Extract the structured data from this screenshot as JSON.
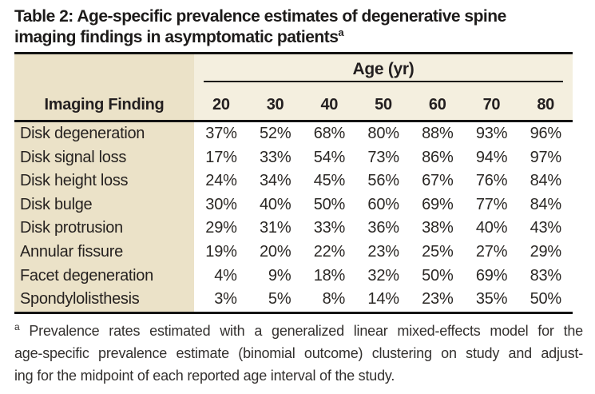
{
  "title": {
    "line1": "Table 2: Age-specific prevalence estimates of degenerative spine",
    "line2": "imaging findings in asymptomatic patients",
    "marker": "a"
  },
  "table": {
    "age_group_label": "Age (yr)",
    "label_col_header": "Imaging Finding",
    "age_headers": [
      "20",
      "30",
      "40",
      "50",
      "60",
      "70",
      "80"
    ],
    "rows": [
      {
        "label": "Disk degeneration",
        "values": [
          "37%",
          "52%",
          "68%",
          "80%",
          "88%",
          "93%",
          "96%"
        ]
      },
      {
        "label": "Disk signal loss",
        "values": [
          "17%",
          "33%",
          "54%",
          "73%",
          "86%",
          "94%",
          "97%"
        ]
      },
      {
        "label": "Disk height loss",
        "values": [
          "24%",
          "34%",
          "45%",
          "56%",
          "67%",
          "76%",
          "84%"
        ]
      },
      {
        "label": "Disk bulge",
        "values": [
          "30%",
          "40%",
          "50%",
          "60%",
          "69%",
          "77%",
          "84%"
        ]
      },
      {
        "label": "Disk protrusion",
        "values": [
          "29%",
          "31%",
          "33%",
          "36%",
          "38%",
          "40%",
          "43%"
        ]
      },
      {
        "label": "Annular fissure",
        "values": [
          "19%",
          "20%",
          "22%",
          "23%",
          "25%",
          "27%",
          "29%"
        ]
      },
      {
        "label": "Facet degeneration",
        "values": [
          "4%",
          "9%",
          "18%",
          "32%",
          "50%",
          "69%",
          "83%"
        ]
      },
      {
        "label": "Spondylolisthesis",
        "values": [
          "3%",
          "5%",
          "8%",
          "14%",
          "23%",
          "35%",
          "50%"
        ]
      }
    ]
  },
  "footnote": {
    "marker": "a",
    "lines": [
      "Prevalence rates estimated with a generalized linear mixed-effects model for the",
      "age-specific prevalence estimate (binomial outcome) clustering on study and adjust-",
      "ing for the midpoint of each reported age interval of the study."
    ]
  },
  "colors": {
    "label_column_bg": "#ebe2c8",
    "header_band_bg": "#f4efdf",
    "rule": "#141414",
    "text": "#231f20"
  }
}
